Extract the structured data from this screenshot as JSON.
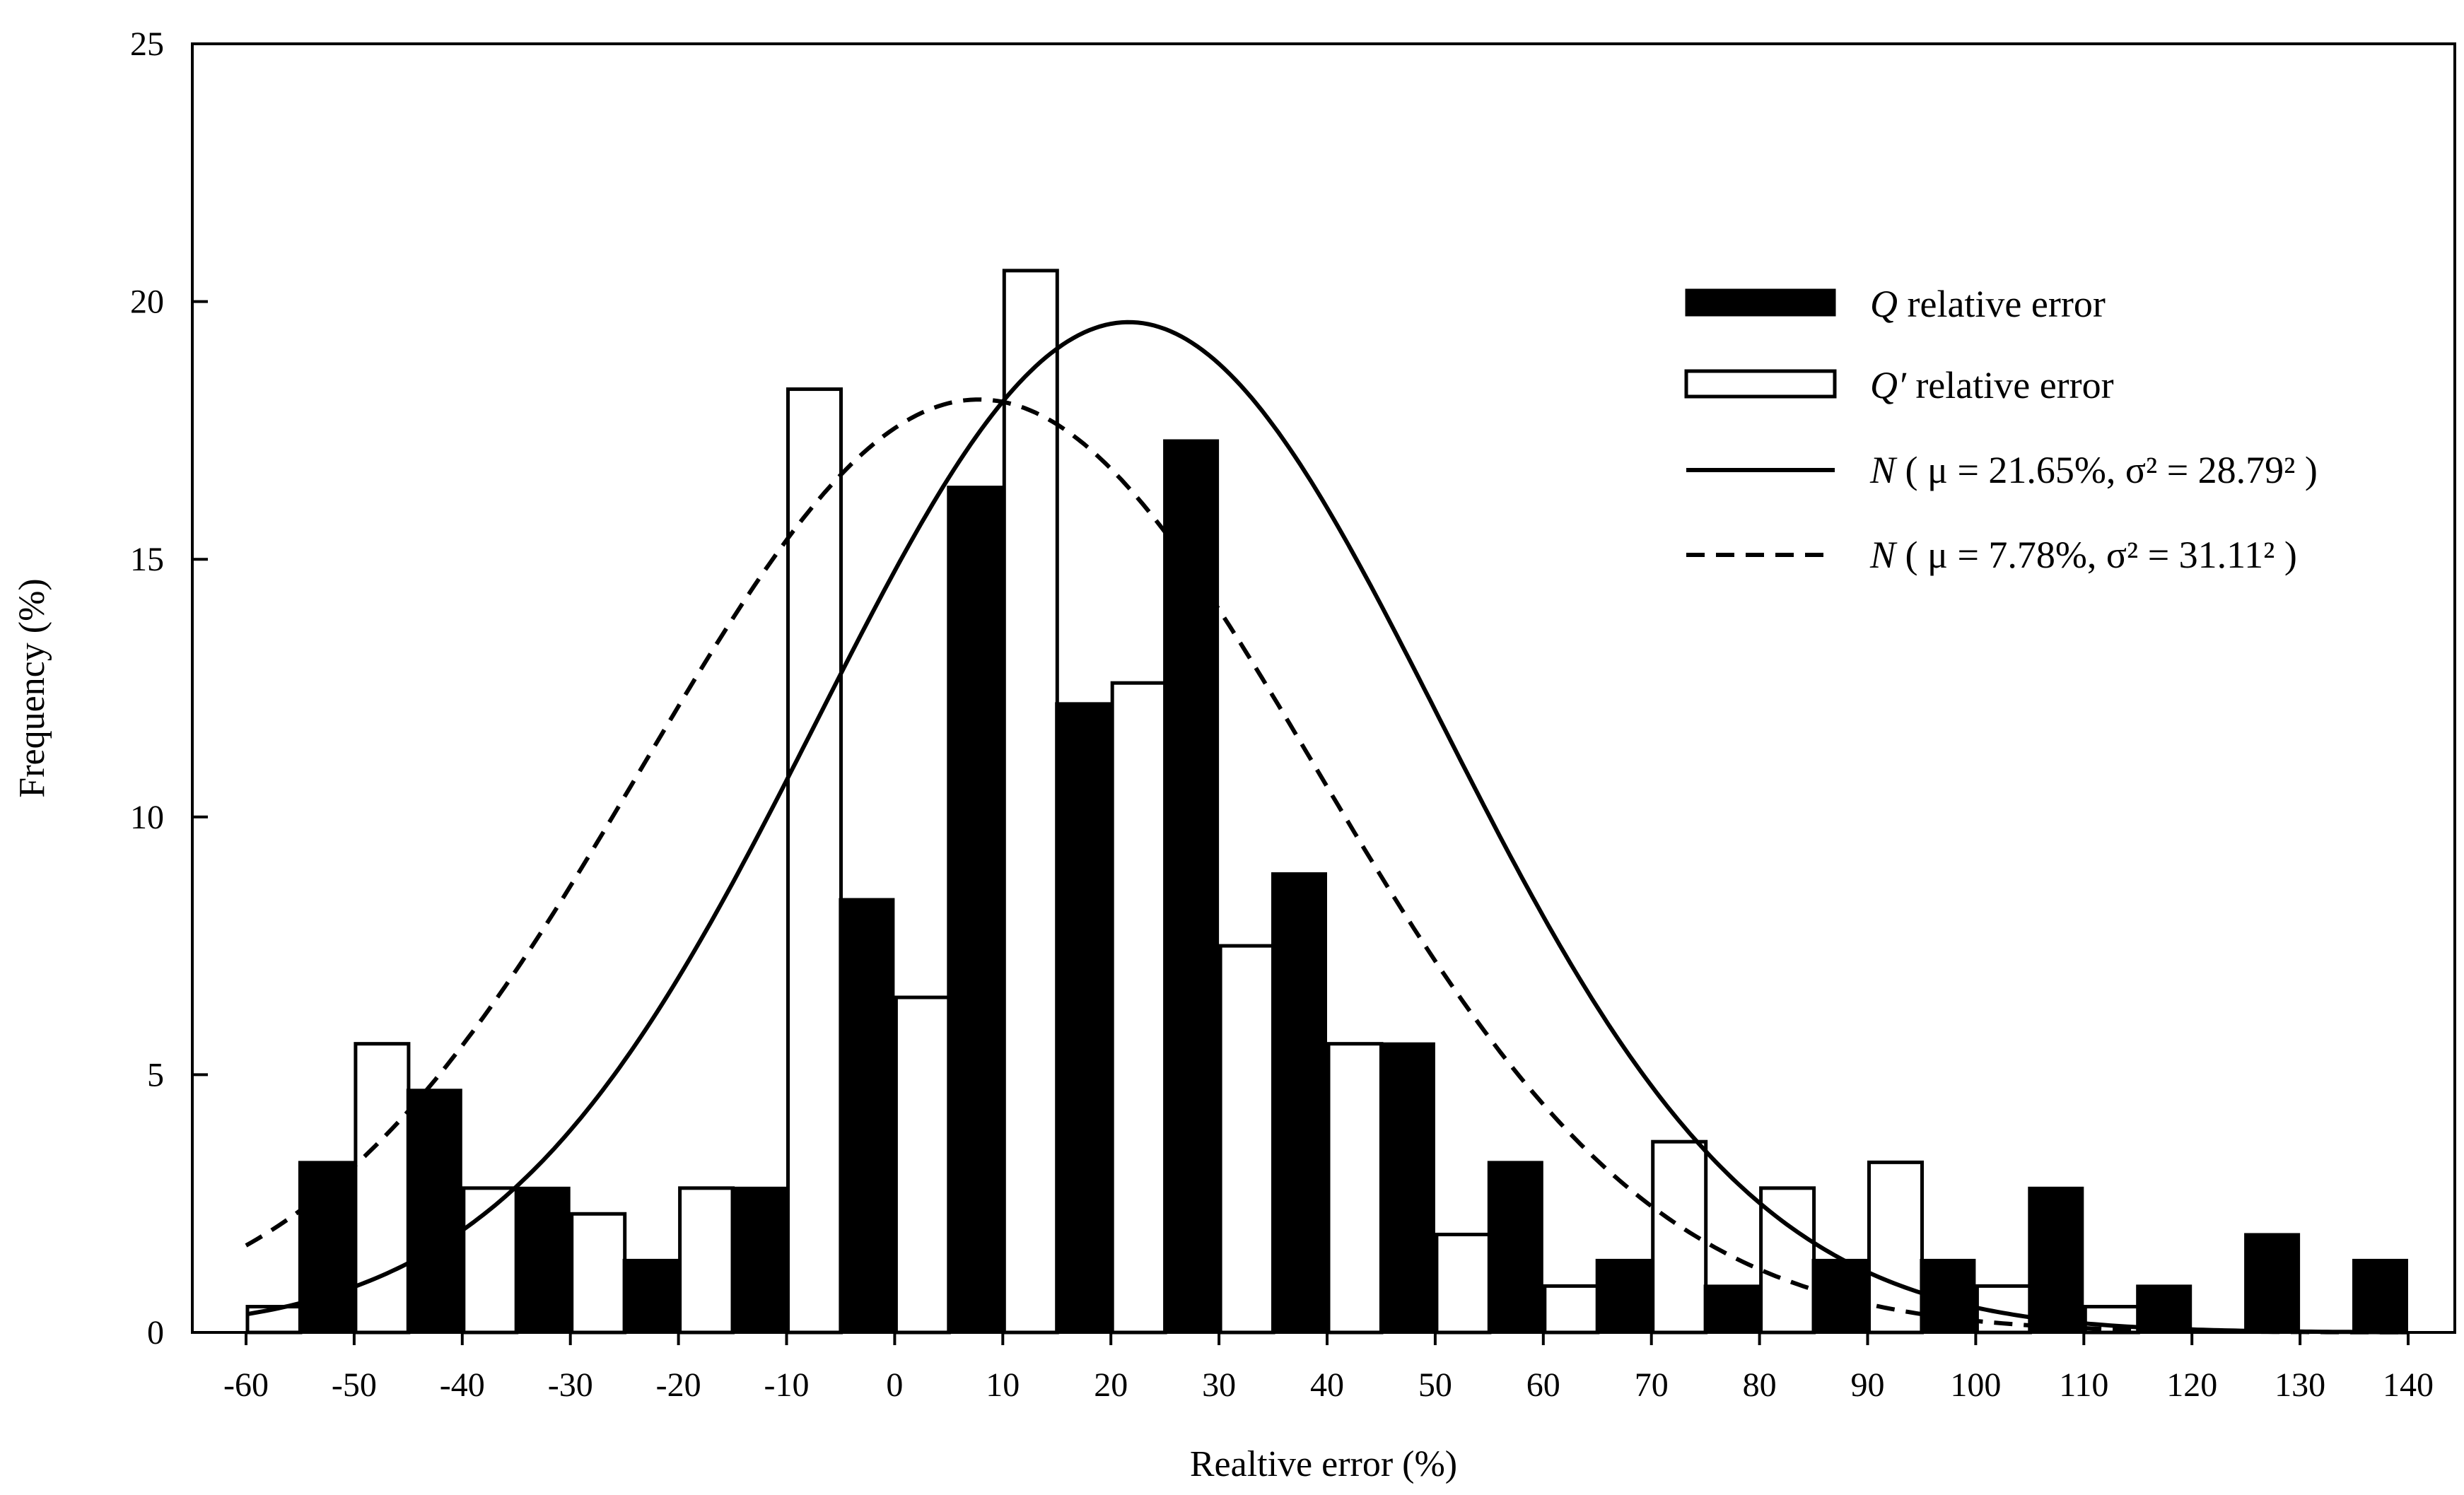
{
  "chart_data": {
    "type": "bar",
    "title": "",
    "xlabel": "Realtive error (%)",
    "ylabel": "Frequency (%)",
    "ylim": [
      0,
      25
    ],
    "yticks": [
      0,
      5,
      10,
      15,
      20,
      25
    ],
    "xlim": [
      -60,
      140
    ],
    "categories": [
      "-60",
      "-50",
      "-40",
      "-30",
      "-20",
      "-10",
      "0",
      "10",
      "20",
      "30",
      "40",
      "50",
      "60",
      "70",
      "80",
      "90",
      "100",
      "110",
      "120",
      "130",
      "140"
    ],
    "series": [
      {
        "name": "Q relative error",
        "style": "filled",
        "color": "#000000",
        "values": [
          0,
          3.3,
          4.7,
          2.8,
          1.4,
          2.8,
          8.4,
          16.4,
          12.2,
          17.3,
          8.9,
          5.6,
          3.3,
          1.4,
          0.9,
          1.4,
          1.4,
          2.8,
          0.9,
          1.9,
          1.4
        ]
      },
      {
        "name": "Q′ relative error",
        "style": "hollow",
        "color": "#ffffff",
        "values": [
          0.5,
          5.6,
          2.8,
          2.3,
          2.8,
          18.3,
          6.5,
          20.6,
          12.6,
          7.5,
          5.6,
          1.9,
          0.9,
          3.7,
          2.8,
          3.3,
          0.9,
          0.5,
          0,
          0,
          0
        ]
      }
    ],
    "curves": [
      {
        "name": "N ( μ = 21.65%, σ² = 28.79² )",
        "mu": 21.65,
        "sigma": 28.79,
        "peak": 19.6,
        "style": "solid"
      },
      {
        "name": "N ( μ = 7.78%, σ² = 31.11² )",
        "mu": 7.78,
        "sigma": 31.11,
        "peak": 18.1,
        "style": "dashed"
      }
    ],
    "legend": {
      "position": "top-right",
      "items": [
        {
          "symbol": "Q",
          "text": " relative error"
        },
        {
          "symbol": "Q′",
          "text": " relative error"
        },
        {
          "symbol": "N",
          "text": " ( μ = 21.65%, σ² = 28.79² )"
        },
        {
          "symbol": "N",
          "text": " ( μ = 7.78%, σ² = 31.11² )"
        }
      ]
    }
  }
}
